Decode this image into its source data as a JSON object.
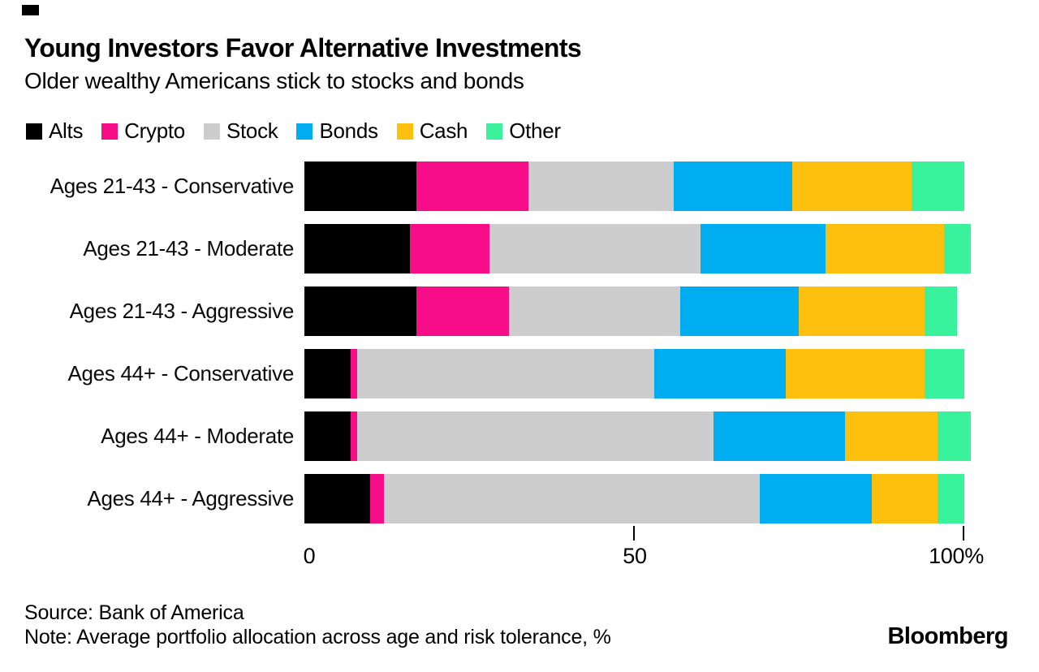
{
  "header": {
    "title": "Young Investors Favor Alternative Investments",
    "subtitle": "Older wealthy Americans stick to stocks and bonds"
  },
  "legend": [
    {
      "label": "Alts",
      "color": "#000000"
    },
    {
      "label": "Crypto",
      "color": "#f70d88"
    },
    {
      "label": "Stock",
      "color": "#cdcdcd"
    },
    {
      "label": "Bonds",
      "color": "#00adf0"
    },
    {
      "label": "Cash",
      "color": "#fdc00f"
    },
    {
      "label": "Other",
      "color": "#3bf29c"
    }
  ],
  "chart_data": {
    "type": "bar",
    "stacked": true,
    "orientation": "horizontal",
    "unit": "%",
    "title": "Young Investors Favor Alternative Investments",
    "subtitle": "Older wealthy Americans stick to stocks and bonds",
    "categories": [
      "Ages 21-43 - Conservative",
      "Ages 21-43 - Moderate",
      "Ages 21-43 - Aggressive",
      "Ages 44+ - Conservative",
      "Ages 44+ - Moderate",
      "Ages 44+ - Aggressive"
    ],
    "series": [
      {
        "name": "Alts",
        "color": "#000000",
        "values": [
          17,
          16,
          17,
          7,
          7,
          10
        ]
      },
      {
        "name": "Crypto",
        "color": "#f70d88",
        "values": [
          17,
          12,
          14,
          1,
          1,
          2
        ]
      },
      {
        "name": "Stock",
        "color": "#cdcdcd",
        "values": [
          22,
          32,
          26,
          45,
          54,
          57
        ]
      },
      {
        "name": "Bonds",
        "color": "#00adf0",
        "values": [
          18,
          19,
          18,
          20,
          20,
          17
        ]
      },
      {
        "name": "Cash",
        "color": "#fdc00f",
        "values": [
          18,
          18,
          19,
          21,
          14,
          10
        ]
      },
      {
        "name": "Other",
        "color": "#3bf29c",
        "values": [
          8,
          4,
          5,
          6,
          5,
          4
        ]
      }
    ],
    "xlim": [
      0,
      100
    ],
    "x_ticks": [
      "0",
      "50",
      "100%"
    ],
    "grid": false,
    "legend_position": "top"
  },
  "axis": {
    "tick_0": "0",
    "tick_50": "50",
    "tick_100": "100%"
  },
  "footer": {
    "source": "Source: Bank of America",
    "note": "Note: Average portfolio allocation across age and risk tolerance, %",
    "logo": "Bloomberg"
  }
}
